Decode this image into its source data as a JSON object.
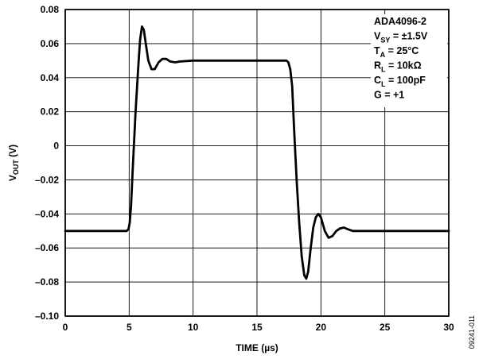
{
  "chart_data": {
    "type": "line",
    "title": "",
    "xlabel": "TIME (µs)",
    "ylabel": {
      "main": "V",
      "sub": "OUT",
      "rest": " (V)"
    },
    "xlim": [
      0,
      30
    ],
    "ylim": [
      -0.1,
      0.08
    ],
    "grid": true,
    "x_ticks": [
      0,
      5,
      10,
      15,
      20,
      25,
      30
    ],
    "x_tick_labels": [
      "0",
      "5",
      "10",
      "15",
      "20",
      "25",
      "30"
    ],
    "y_ticks": [
      -0.1,
      -0.08,
      -0.06,
      -0.04,
      -0.02,
      0,
      0.02,
      0.04,
      0.06,
      0.08
    ],
    "y_tick_labels": [
      "–0.10",
      "–0.08",
      "–0.06",
      "–0.04",
      "–0.02",
      "0",
      "0.02",
      "0.04",
      "0.06",
      "0.08"
    ],
    "series": [
      {
        "x": [
          0,
          4.8,
          4.95,
          5.05,
          5.15,
          5.3,
          5.5,
          5.7,
          5.85,
          6.0,
          6.15,
          6.3,
          6.5,
          6.75,
          7.0,
          7.3,
          7.6,
          7.9,
          8.2,
          8.6,
          9.0,
          10,
          12,
          14,
          16,
          17.3,
          17.45,
          17.6,
          17.75,
          17.9,
          18.1,
          18.3,
          18.5,
          18.7,
          18.85,
          19.0,
          19.2,
          19.4,
          19.6,
          19.8,
          20.0,
          20.3,
          20.6,
          20.9,
          21.2,
          21.5,
          21.8,
          22.1,
          22.5,
          23,
          25,
          27,
          30
        ],
        "y": [
          -0.05,
          -0.05,
          -0.049,
          -0.045,
          -0.035,
          -0.01,
          0.02,
          0.045,
          0.062,
          0.07,
          0.068,
          0.06,
          0.05,
          0.045,
          0.045,
          0.049,
          0.051,
          0.051,
          0.0495,
          0.049,
          0.0495,
          0.05,
          0.05,
          0.05,
          0.05,
          0.05,
          0.049,
          0.045,
          0.035,
          0.01,
          -0.02,
          -0.045,
          -0.065,
          -0.076,
          -0.078,
          -0.074,
          -0.06,
          -0.048,
          -0.042,
          -0.04,
          -0.042,
          -0.05,
          -0.054,
          -0.053,
          -0.05,
          -0.0485,
          -0.048,
          -0.049,
          -0.05,
          -0.05,
          -0.05,
          -0.05,
          -0.05
        ]
      }
    ],
    "legend_box": {
      "lines": [
        {
          "main": "ADA4096-2",
          "sub": "",
          "rest": ""
        },
        {
          "main": "V",
          "sub": "SY",
          "rest": " = ±1.5V"
        },
        {
          "main": "T",
          "sub": "A",
          "rest": " = 25°C"
        },
        {
          "main": "R",
          "sub": "L",
          "rest": " = 10kΩ"
        },
        {
          "main": "C",
          "sub": "L",
          "rest": " = 100pF"
        },
        {
          "main": "G = +1",
          "sub": "",
          "rest": ""
        }
      ]
    },
    "figure_id": "09241-011"
  }
}
